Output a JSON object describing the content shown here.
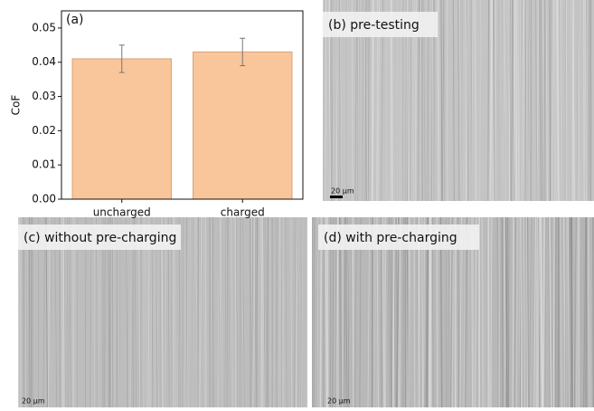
{
  "chart_data": {
    "type": "bar",
    "title": "(a)",
    "ylabel": "CoF",
    "categories": [
      "uncharged",
      "charged"
    ],
    "values": [
      0.041,
      0.043
    ],
    "errors": [
      0.004,
      0.004
    ],
    "color": "#f9c59a",
    "edgecolor": "#d9a27a",
    "ylim": [
      0,
      0.055
    ],
    "yticks": [
      {
        "value": 0,
        "label": "0.00"
      },
      {
        "value": 0.01,
        "label": "0.01"
      },
      {
        "value": 0.02,
        "label": "0.02"
      },
      {
        "value": 0.03,
        "label": "0.03"
      },
      {
        "value": 0.04,
        "label": "0.04"
      },
      {
        "value": 0.05,
        "label": "0.05"
      }
    ]
  },
  "panels": [
    {
      "label": "(b) pre-testing",
      "scale": "20 µm"
    },
    {
      "label": "(c) without pre-charging",
      "scale": "20 µm"
    },
    {
      "label": "(d) with pre-charging",
      "scale": "20 µm"
    }
  ]
}
